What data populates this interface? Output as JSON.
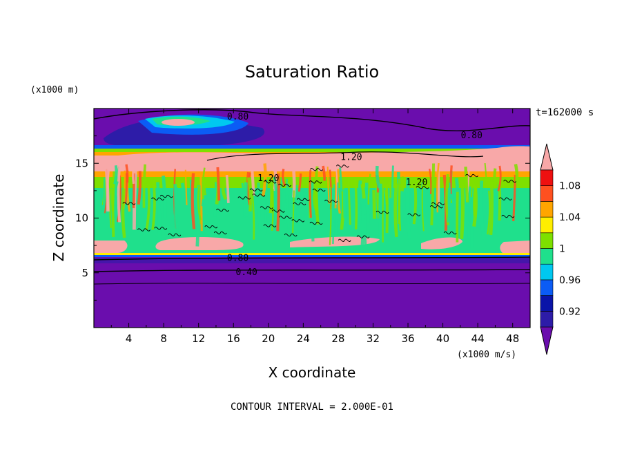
{
  "chart_data": {
    "type": "heatmap",
    "title": "Saturation Ratio",
    "xlabel": "X coordinate",
    "ylabel": "Z coordinate",
    "x_units": "(x1000 m/s)",
    "y_units": "(x1000 m)",
    "time_label": "t=162000 s",
    "footer": "CONTOUR INTERVAL = 2.000E-01",
    "xlim": [
      0,
      50
    ],
    "ylim": [
      0,
      20
    ],
    "x_ticks": [
      "4",
      "8",
      "12",
      "16",
      "20",
      "24",
      "28",
      "32",
      "36",
      "40",
      "44",
      "48"
    ],
    "y_ticks": [
      "5",
      "10",
      "15"
    ],
    "colorbar": {
      "levels": [
        0.9,
        0.92,
        0.94,
        0.96,
        0.98,
        1.0,
        1.02,
        1.04,
        1.06,
        1.08,
        1.1
      ],
      "labels": [
        "0.92",
        "0.96",
        "1",
        "1.04",
        "1.08"
      ],
      "colors": [
        "#6a0dad",
        "#2d1ca8",
        "#0a14a8",
        "#0b5cf5",
        "#00c8f0",
        "#1fe08c",
        "#7ee000",
        "#ffee00",
        "#ffa500",
        "#ff5020",
        "#ee1010",
        "#f8a8a8"
      ],
      "extend": "both"
    },
    "contour_labels": [
      {
        "text": "0.80",
        "x": 16.5,
        "z": 19.3
      },
      {
        "text": "0.80",
        "x": 43.3,
        "z": 17.6
      },
      {
        "text": "1.20",
        "x": 29.5,
        "z": 15.6
      },
      {
        "text": "1.20",
        "x": 20.0,
        "z": 13.7
      },
      {
        "text": "1.20",
        "x": 37.0,
        "z": 13.3
      },
      {
        "text": "0.80",
        "x": 16.5,
        "z": 6.4
      },
      {
        "text": "0.40",
        "x": 17.5,
        "z": 5.1
      }
    ]
  }
}
